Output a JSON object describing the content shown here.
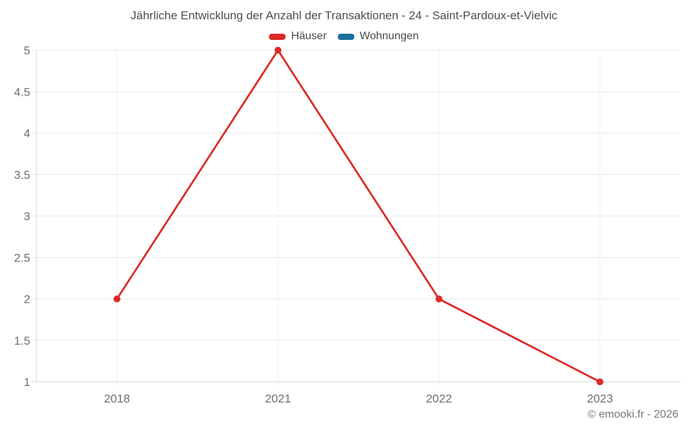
{
  "chart": {
    "title": "Jährliche Entwicklung der Anzahl der Transaktionen - 24 - Saint-Pardoux-et-Vielvic",
    "copyright": "© emooki.fr - 2026"
  },
  "chart_data": {
    "type": "line",
    "title": "Jährliche Entwicklung der Anzahl der Transaktionen - 24 - Saint-Pardoux-et-Vielvic",
    "categories": [
      "2018",
      "2021",
      "2022",
      "2023"
    ],
    "series": [
      {
        "name": "Häuser",
        "color": "#dd2a28",
        "values": [
          2,
          5,
          2,
          1
        ]
      },
      {
        "name": "Wohnungen",
        "color": "#1c6f9f",
        "values": []
      }
    ],
    "xlabel": "",
    "ylabel": "",
    "ylim": [
      1,
      5
    ],
    "ytick_step": 0.5,
    "yticks": [
      "5",
      "4.5",
      "4",
      "3.5",
      "3",
      "2.5",
      "2",
      "1.5",
      "1"
    ],
    "grid": true,
    "legend_position": "top"
  },
  "colors": {
    "background": "#ffffff",
    "title_text": "#4d4d4d",
    "tick_text": "#6e6e6e",
    "gridline": "#e8e8e8",
    "vertical_gridline": "#f0f0f0",
    "axis_line": "#d6d6d6",
    "copyright_text": "#757575"
  }
}
